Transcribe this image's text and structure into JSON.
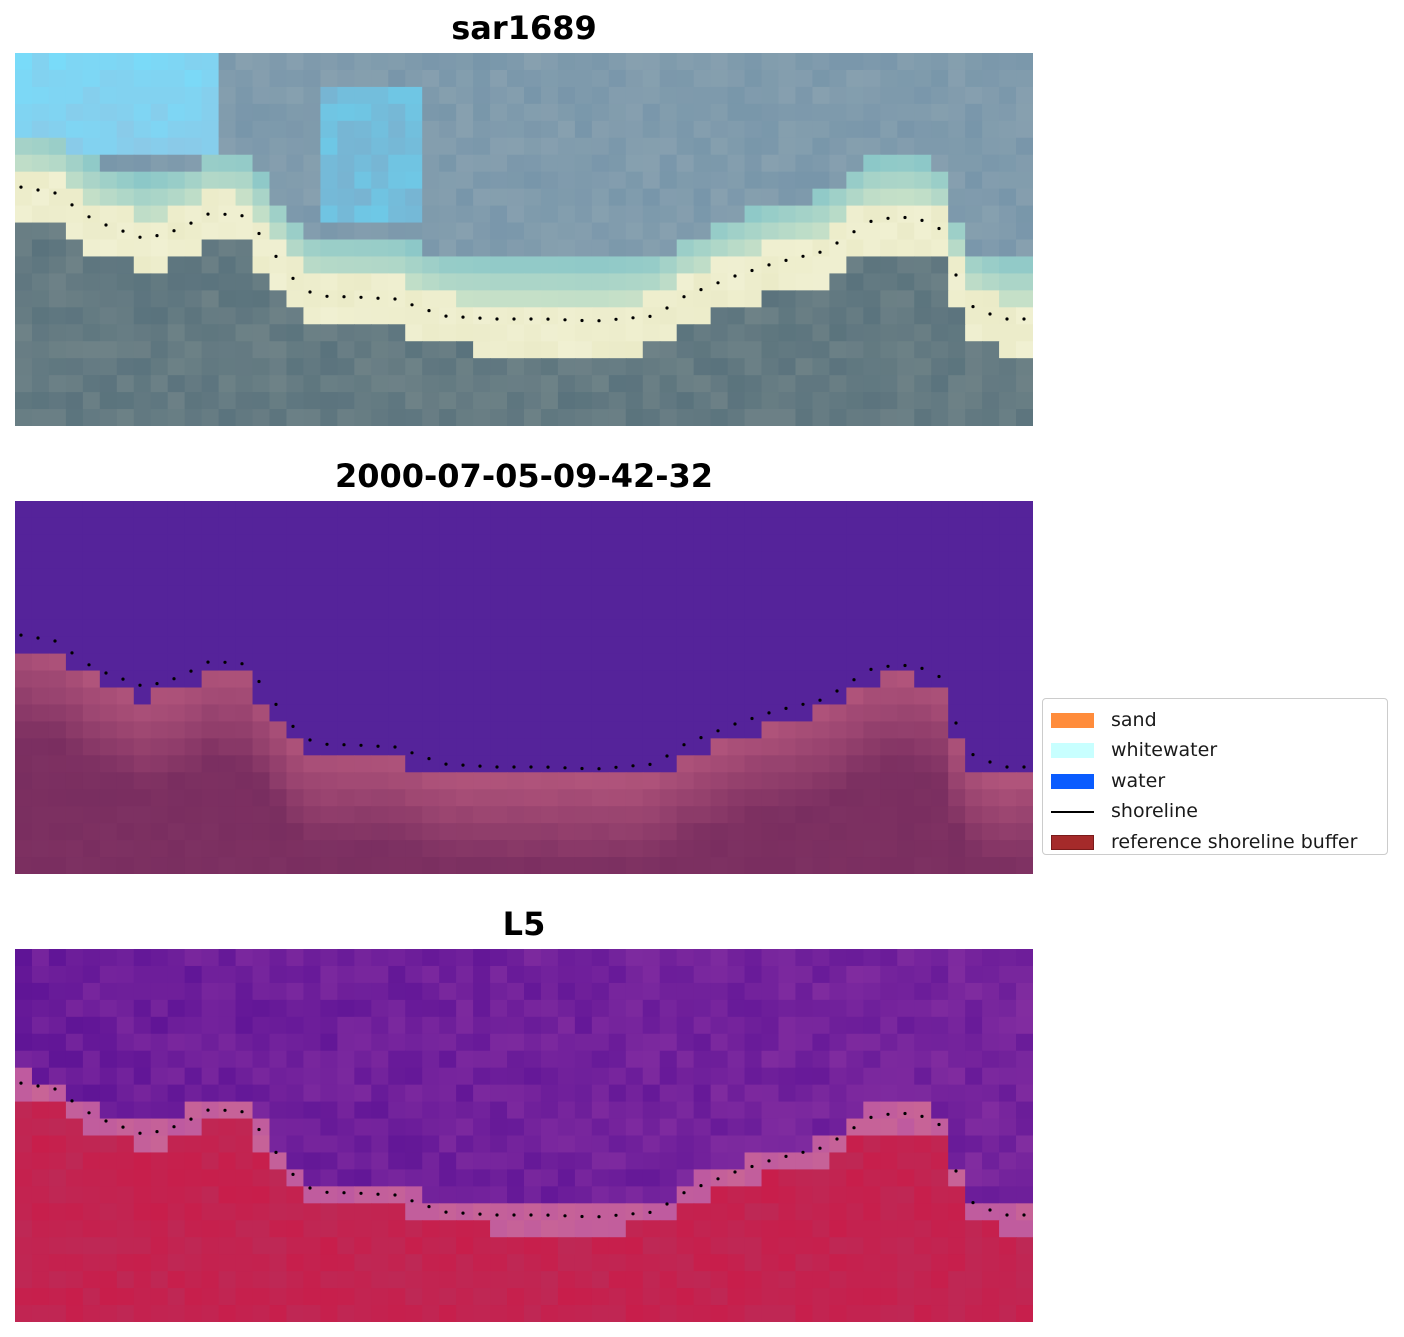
{
  "panels": [
    {
      "title": "sar1689",
      "image": "rgb-composite",
      "map_id": "rgb"
    },
    {
      "title": "2000-07-05-09-42-32",
      "image": "classified-image",
      "map_id": "class"
    },
    {
      "title": "L5",
      "image": "mndwi-image",
      "map_id": "mndwi"
    }
  ],
  "legend": {
    "items": [
      {
        "label": "sand",
        "color": "#ff8c3b",
        "kind": "patch"
      },
      {
        "label": "whitewater",
        "color": "#c8ffff",
        "kind": "patch"
      },
      {
        "label": "water",
        "color": "#0a5cff",
        "kind": "patch"
      },
      {
        "label": "shoreline",
        "color": "#000000",
        "kind": "line"
      },
      {
        "label": "reference shoreline buffer",
        "color": "#a52a2a",
        "kind": "patch"
      }
    ]
  },
  "colors": {
    "water_class": "#55239a",
    "buffer_class": "#b2557c",
    "shoreline_dots": "#000000"
  }
}
